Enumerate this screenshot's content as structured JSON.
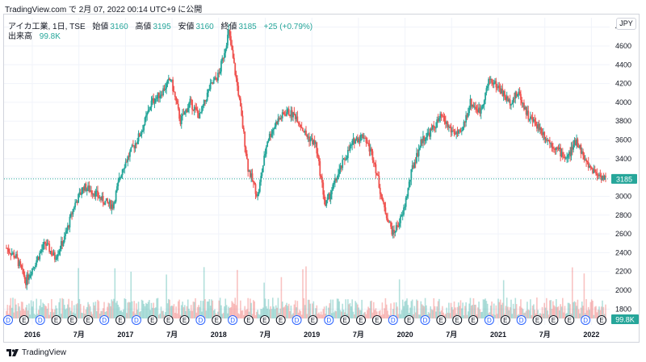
{
  "caption": "TradingView.com で 2月 07, 2022 00:14 UTC+9 に公開",
  "currency": "JPY",
  "brand": "TradingView",
  "legend": {
    "symbol": "アイカ工業, 1日, TSE",
    "open_label": "始値",
    "open": "3160",
    "high_label": "高値",
    "high": "3195",
    "low_label": "安値",
    "low": "3160",
    "close_label": "終値",
    "close": "3185",
    "change": "+25 (+0.79%)",
    "volume_label": "出来高",
    "volume": "99.8K"
  },
  "colors": {
    "up": "#26a69a",
    "down": "#ef5350",
    "text": "#131722",
    "grid": "#f0f3fa"
  },
  "chart_data": {
    "type": "line",
    "title": "アイカ工業, 1日, TSE",
    "x_tick_labels": [
      "2016",
      "7月",
      "2017",
      "7月",
      "2018",
      "7月",
      "2019",
      "7月",
      "2020",
      "7月",
      "2021",
      "7月",
      "2022"
    ],
    "y_tick_labels": [
      "1800",
      "2000",
      "2200",
      "2400",
      "2600",
      "2800",
      "3000",
      "3200",
      "3400",
      "3600",
      "3800",
      "4000",
      "4200",
      "4400",
      "4600",
      "4800"
    ],
    "ylim": [
      1700,
      4900
    ],
    "last_price": 3185,
    "last_price_label": "3185",
    "last_volume_label": "99.8K",
    "grid": true,
    "series": [
      {
        "x": [
          "2015-12",
          "2016-02",
          "2016-03",
          "2016-05",
          "2016-06",
          "2016-08",
          "2016-09",
          "2016-11",
          "2016-12",
          "2017-02",
          "2017-04",
          "2017-05",
          "2017-07",
          "2017-08",
          "2017-10",
          "2017-11",
          "2017-12",
          "2018-01",
          "2018-02",
          "2018-03",
          "2018-05",
          "2018-06",
          "2018-07",
          "2018-08",
          "2018-09",
          "2018-10",
          "2018-10",
          "2018-11",
          "2018-12",
          "2019-01",
          "2019-02",
          "2019-04",
          "2019-05",
          "2019-07",
          "2019-08",
          "2019-09",
          "2019-10",
          "2019-11",
          "2020-01",
          "2020-02",
          "2020-03",
          "2020-03",
          "2020-04",
          "2020-05",
          "2020-07",
          "2020-08",
          "2020-10",
          "2020-11",
          "2020-12",
          "2021-01",
          "2021-02",
          "2021-03",
          "2021-04",
          "2021-05",
          "2021-06",
          "2021-07",
          "2021-08",
          "2021-09",
          "2021-10",
          "2021-11",
          "2021-12",
          "2022-01",
          "2022-02"
        ],
        "values": [
          2450,
          2350,
          2100,
          2300,
          2500,
          2350,
          2550,
          2900,
          3100,
          3050,
          2950,
          2900,
          3300,
          3500,
          3700,
          4000,
          4100,
          4250,
          3800,
          4000,
          3850,
          4150,
          4300,
          4750,
          4100,
          3300,
          3000,
          3600,
          3800,
          3900,
          3850,
          3650,
          3550,
          2900,
          3150,
          3400,
          3600,
          3650,
          3400,
          2900,
          2600,
          2800,
          3300,
          3600,
          3700,
          3850,
          3700,
          3650,
          4000,
          3900,
          4250,
          4150,
          4000,
          4100,
          3850,
          3750,
          3600,
          3500,
          3400,
          3600,
          3350,
          3250,
          3185
        ]
      }
    ],
    "event_marker_labels": [
      "D",
      "E",
      "D",
      "E",
      "E",
      "E",
      "D",
      "E",
      "D",
      "E",
      "E",
      "E",
      "D",
      "E",
      "D",
      "E",
      "E",
      "E",
      "D",
      "E",
      "D",
      "E",
      "E",
      "E",
      "D",
      "E",
      "D",
      "E",
      "E",
      "E",
      "D",
      "E",
      "D",
      "E",
      "E",
      "E",
      "D",
      "E"
    ]
  }
}
